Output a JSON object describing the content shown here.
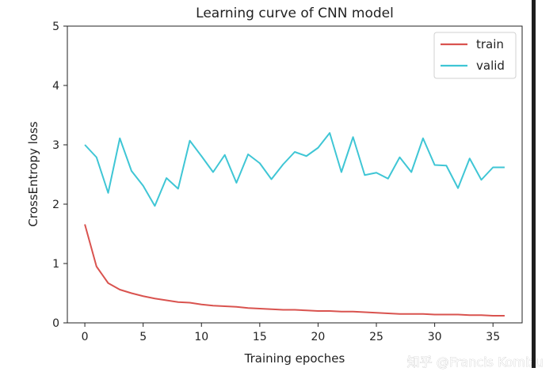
{
  "chart_data": {
    "type": "line",
    "title": "Learning curve of CNN model",
    "xlabel": "Training epoches",
    "ylabel": "CrossEntropy loss",
    "xlim": [
      -1.5,
      37.5
    ],
    "ylim": [
      0,
      5
    ],
    "xticks": [
      0,
      5,
      10,
      15,
      20,
      25,
      30,
      35
    ],
    "yticks": [
      0,
      1,
      2,
      3,
      4,
      5
    ],
    "grid": false,
    "legend_position": "top-right",
    "x": [
      0,
      1,
      2,
      3,
      4,
      5,
      6,
      7,
      8,
      9,
      10,
      11,
      12,
      13,
      14,
      15,
      16,
      17,
      18,
      19,
      20,
      21,
      22,
      23,
      24,
      25,
      26,
      27,
      28,
      29,
      30,
      31,
      32,
      33,
      34,
      35,
      36
    ],
    "series": [
      {
        "name": "train",
        "color": "#d9534f",
        "values": [
          1.66,
          0.95,
          0.67,
          0.56,
          0.5,
          0.45,
          0.41,
          0.38,
          0.35,
          0.34,
          0.31,
          0.29,
          0.28,
          0.27,
          0.25,
          0.24,
          0.23,
          0.22,
          0.22,
          0.21,
          0.2,
          0.2,
          0.19,
          0.19,
          0.18,
          0.17,
          0.16,
          0.15,
          0.15,
          0.15,
          0.14,
          0.14,
          0.14,
          0.13,
          0.13,
          0.12,
          0.12
        ]
      },
      {
        "name": "valid",
        "color": "#3fc6d5",
        "values": [
          3.0,
          2.79,
          2.19,
          3.11,
          2.56,
          2.31,
          1.97,
          2.44,
          2.26,
          3.07,
          2.81,
          2.54,
          2.83,
          2.36,
          2.84,
          2.69,
          2.42,
          2.67,
          2.88,
          2.81,
          2.95,
          3.2,
          2.54,
          3.13,
          2.49,
          2.53,
          2.43,
          2.79,
          2.54,
          3.11,
          2.66,
          2.65,
          2.27,
          2.77,
          2.41,
          2.62,
          2.62
        ]
      }
    ]
  },
  "watermark": "知乎 @Francis Komizu"
}
